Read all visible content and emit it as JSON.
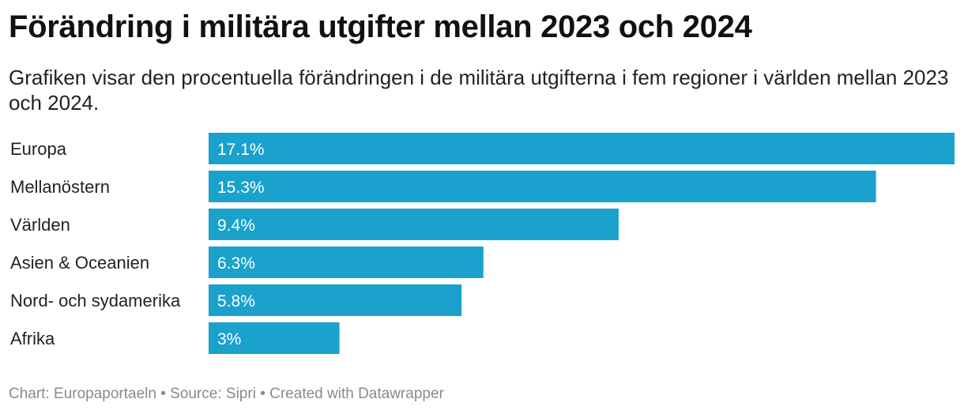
{
  "header": {
    "title": "Förändring i militära utgifter mellan 2023 och 2024",
    "subtitle": "Grafiken visar den procentuella förändringen i de militära utgifterna i fem regioner i världen mellan 2023 och 2024."
  },
  "footer": {
    "text": "Chart: Europaportaeln • Source: Sipri • Created with Datawrapper"
  },
  "colors": {
    "bar": "#1aa1cc",
    "value_label": "#ffffff"
  },
  "chart_data": {
    "type": "bar",
    "orientation": "horizontal",
    "categories": [
      "Europa",
      "Mellanöstern",
      "Världen",
      "Asien & Oceanien",
      "Nord- och sydamerika",
      "Afrika"
    ],
    "values": [
      17.1,
      15.3,
      9.4,
      6.3,
      5.8,
      3
    ],
    "value_labels": [
      "17.1%",
      "15.3%",
      "9.4%",
      "6.3%",
      "5.8%",
      "3%"
    ],
    "title": "Förändring i militära utgifter mellan 2023 och 2024",
    "xlim": [
      0,
      17.1
    ],
    "grid": false,
    "legend": "none"
  }
}
